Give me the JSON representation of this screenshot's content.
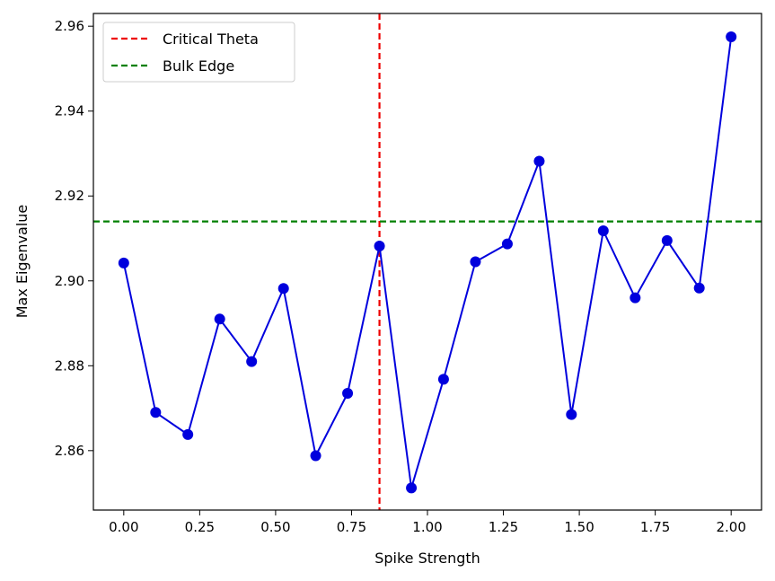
{
  "chart_data": {
    "type": "line",
    "title": "",
    "xlabel": "Spike Strength",
    "ylabel": "Max Eigenvalue",
    "xlim": [
      -0.1,
      2.1
    ],
    "ylim": [
      2.846,
      2.963
    ],
    "x_ticks": [
      0.0,
      0.25,
      0.5,
      0.75,
      1.0,
      1.25,
      1.5,
      1.75,
      2.0
    ],
    "x_tick_labels": [
      "0.00",
      "0.25",
      "0.50",
      "0.75",
      "1.00",
      "1.25",
      "1.50",
      "1.75",
      "2.00"
    ],
    "y_ticks": [
      2.86,
      2.88,
      2.9,
      2.92,
      2.94,
      2.96
    ],
    "y_tick_labels": [
      "2.86",
      "2.88",
      "2.90",
      "2.92",
      "2.94",
      "2.96"
    ],
    "grid": false,
    "legend_position": "top-left",
    "series": [
      {
        "color": "#0000dd",
        "marker": "circle",
        "x": [
          0.0,
          0.105,
          0.211,
          0.316,
          0.421,
          0.526,
          0.632,
          0.737,
          0.842,
          0.947,
          1.053,
          1.158,
          1.263,
          1.368,
          1.474,
          1.579,
          1.684,
          1.789,
          1.895,
          2.0
        ],
        "y": [
          2.9042,
          2.869,
          2.8638,
          2.891,
          2.881,
          2.8982,
          2.8588,
          2.8735,
          2.9082,
          2.8512,
          2.8768,
          2.9045,
          2.9087,
          2.9282,
          2.8685,
          2.9118,
          2.896,
          2.9095,
          2.8983,
          2.9575
        ]
      }
    ],
    "reference_lines": [
      {
        "name": "Critical Theta",
        "orientation": "vertical",
        "value": 0.842,
        "color": "#ee0000",
        "style": "dashed"
      },
      {
        "name": "Bulk Edge",
        "orientation": "horizontal",
        "value": 2.914,
        "color": "#008000",
        "style": "dashed"
      }
    ]
  }
}
